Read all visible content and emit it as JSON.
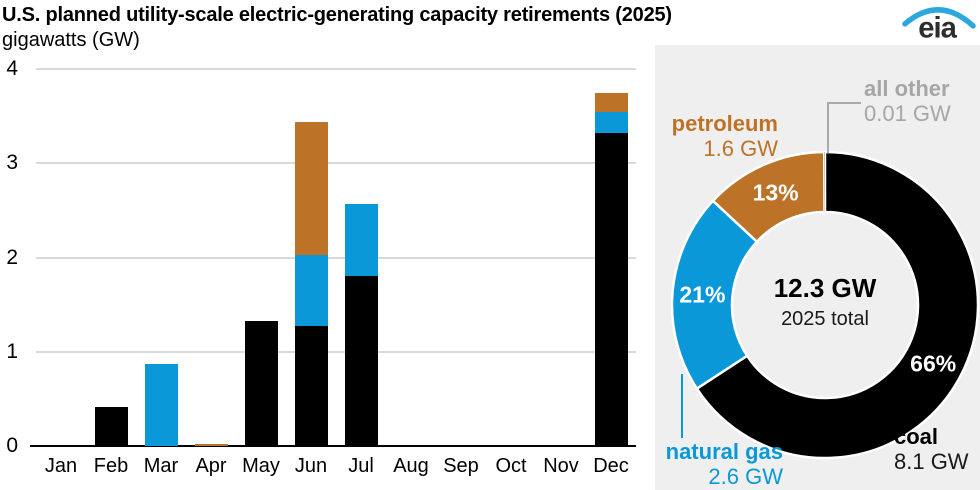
{
  "header": {
    "title": "U.S. planned utility-scale electric-generating capacity retirements (2025)",
    "subtitle": "gigawatts (GW)",
    "logo_text": "eia"
  },
  "colors": {
    "coal": "#000000",
    "natural_gas": "#0a98d9",
    "petroleum": "#bd7327",
    "all_other": "#b3b3b3",
    "panel_bg": "#efefef",
    "gridline": "#d9d9d9",
    "gray_text": "#a6a6a6",
    "leader_gray": "#a9a9a9",
    "logo_blue": "#2ba8dd"
  },
  "chart_data": [
    {
      "type": "bar",
      "stacked": true,
      "categories": [
        "Jan",
        "Feb",
        "Mar",
        "Apr",
        "May",
        "Jun",
        "Jul",
        "Aug",
        "Sep",
        "Oct",
        "Nov",
        "Dec"
      ],
      "series": [
        {
          "name": "coal",
          "color": "#000000",
          "values": [
            0,
            0.41,
            0,
            0,
            1.33,
            1.27,
            1.8,
            0,
            0,
            0,
            0,
            3.32
          ]
        },
        {
          "name": "natural gas",
          "color": "#0a98d9",
          "values": [
            0,
            0,
            0.87,
            0,
            0,
            0.76,
            0.77,
            0,
            0,
            0,
            0,
            0.22
          ]
        },
        {
          "name": "petroleum",
          "color": "#bd7327",
          "values": [
            0,
            0,
            0,
            0.02,
            0,
            1.41,
            0,
            0,
            0,
            0,
            0,
            0.21
          ]
        }
      ],
      "title": "U.S. planned utility-scale electric-generating capacity retirements (2025)",
      "xlabel": "",
      "ylabel": "gigawatts (GW)",
      "ylim": [
        0,
        4
      ],
      "yticks": [
        0,
        1,
        2,
        3,
        4
      ],
      "grid": true,
      "legend": false
    },
    {
      "type": "donut",
      "total_label": "12.3 GW",
      "total_sublabel": "2025 total",
      "start_angle_deg": 0,
      "direction": "clockwise",
      "legend": false,
      "slices": [
        {
          "name": "coal",
          "value_gw": 8.1,
          "pct": 66,
          "pct_label": "66%",
          "label": "coal",
          "value_label": "8.1 GW",
          "color": "#000000"
        },
        {
          "name": "natural gas",
          "value_gw": 2.6,
          "pct": 21,
          "pct_label": "21%",
          "label": "natural gas",
          "value_label": "2.6 GW",
          "color": "#0a98d9"
        },
        {
          "name": "petroleum",
          "value_gw": 1.6,
          "pct": 13,
          "pct_label": "13%",
          "label": "petroleum",
          "value_label": "1.6 GW",
          "color": "#bd7327"
        },
        {
          "name": "all other",
          "value_gw": 0.01,
          "pct": 0,
          "pct_label": "",
          "label": "all other",
          "value_label": "0.01 GW",
          "color": "#b3b3b3"
        }
      ]
    }
  ]
}
